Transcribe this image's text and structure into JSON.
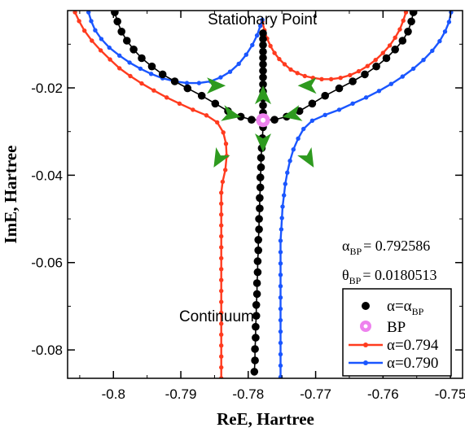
{
  "chart_data": {
    "type": "scatter",
    "title": "",
    "xlabel": "ReE, Hartree",
    "ylabel": "ImE, Hartree",
    "xlim": [
      -0.8068,
      -0.7482
    ],
    "ylim": [
      -0.0865,
      -0.0023
    ],
    "xticks": [
      -0.8,
      -0.79,
      -0.78,
      -0.77,
      -0.76,
      -0.75
    ],
    "xtick_labels": [
      "-0.8",
      "-0.79",
      "-0.78",
      "-0.77",
      "-0.76",
      "-0.75"
    ],
    "yticks": [
      -0.02,
      -0.04,
      -0.06,
      -0.08
    ],
    "ytick_labels": [
      "-0.02",
      "-0.04",
      "-0.06",
      "-0.08"
    ],
    "grid": false,
    "legend_position": "bottom-right",
    "annotations": [
      {
        "text": "Stationary Point",
        "x": -0.7779,
        "y": -0.0055
      },
      {
        "text": "Continuum",
        "x": -0.7847,
        "y": -0.0735
      }
    ],
    "parameters": [
      {
        "symbol": "α",
        "subscript": "BP",
        "value": "= 0.792586"
      },
      {
        "symbol": "θ",
        "subscript": "BP",
        "value": "= 0.0180513"
      }
    ],
    "branch_point": {
      "x": -0.7778,
      "y": -0.0274
    },
    "arrows": [
      {
        "x": -0.7848,
        "y": -0.0195,
        "angle": 0
      },
      {
        "x": -0.7778,
        "y": -0.0217,
        "angle": -90
      },
      {
        "x": -0.7712,
        "y": -0.0195,
        "angle": 180
      },
      {
        "x": -0.7825,
        "y": -0.0262,
        "angle": 12
      },
      {
        "x": -0.7735,
        "y": -0.0262,
        "angle": 168
      },
      {
        "x": -0.7778,
        "y": -0.0325,
        "angle": 90
      },
      {
        "x": -0.7844,
        "y": -0.0363,
        "angle": 120
      },
      {
        "x": -0.771,
        "y": -0.0363,
        "angle": 60
      }
    ],
    "series": [
      {
        "name": "α=α_BP",
        "label_main": "α=α",
        "label_sub": "BP",
        "color": "#000000",
        "marker_r": 4.8,
        "line_width": 1.6,
        "curves": [
          [
            [
              -0.7998,
              -0.0027
            ],
            [
              -0.7994,
              -0.0048
            ],
            [
              -0.7988,
              -0.0071
            ],
            [
              -0.798,
              -0.0092
            ],
            [
              -0.797,
              -0.0112
            ],
            [
              -0.7958,
              -0.0132
            ],
            [
              -0.7943,
              -0.0151
            ],
            [
              -0.7927,
              -0.0169
            ],
            [
              -0.7909,
              -0.0185
            ],
            [
              -0.789,
              -0.0201
            ],
            [
              -0.7869,
              -0.0218
            ],
            [
              -0.7849,
              -0.0236
            ],
            [
              -0.783,
              -0.0253
            ],
            [
              -0.7811,
              -0.0266
            ],
            [
              -0.7795,
              -0.0273
            ],
            [
              -0.7778,
              -0.0274
            ],
            [
              -0.7761,
              -0.0273
            ],
            [
              -0.7743,
              -0.0266
            ],
            [
              -0.7724,
              -0.0253
            ],
            [
              -0.7705,
              -0.0236
            ],
            [
              -0.7686,
              -0.0218
            ],
            [
              -0.7665,
              -0.0201
            ],
            [
              -0.7645,
              -0.0185
            ],
            [
              -0.7627,
              -0.0169
            ],
            [
              -0.761,
              -0.0151
            ],
            [
              -0.7595,
              -0.0132
            ],
            [
              -0.7582,
              -0.0112
            ],
            [
              -0.7571,
              -0.0092
            ],
            [
              -0.7563,
              -0.0071
            ],
            [
              -0.7558,
              -0.0048
            ],
            [
              -0.7555,
              -0.0027
            ]
          ],
          [
            [
              -0.7778,
              -0.0075
            ],
            [
              -0.7778,
              -0.0088
            ],
            [
              -0.7778,
              -0.0102
            ],
            [
              -0.7778,
              -0.0117
            ],
            [
              -0.7778,
              -0.0131
            ],
            [
              -0.7778,
              -0.0146
            ],
            [
              -0.7778,
              -0.0161
            ],
            [
              -0.7778,
              -0.0176
            ],
            [
              -0.7778,
              -0.0192
            ],
            [
              -0.7778,
              -0.0208
            ],
            [
              -0.7778,
              -0.0224
            ],
            [
              -0.7778,
              -0.024
            ],
            [
              -0.7778,
              -0.0257
            ]
          ],
          [
            [
              -0.7778,
              -0.029
            ],
            [
              -0.7779,
              -0.0315
            ],
            [
              -0.778,
              -0.0338
            ],
            [
              -0.7781,
              -0.036
            ],
            [
              -0.7781,
              -0.0382
            ],
            [
              -0.7782,
              -0.0405
            ],
            [
              -0.7782,
              -0.0428
            ],
            [
              -0.7783,
              -0.0452
            ],
            [
              -0.7783,
              -0.0476
            ],
            [
              -0.7784,
              -0.05
            ],
            [
              -0.7784,
              -0.0524
            ],
            [
              -0.7785,
              -0.0548
            ],
            [
              -0.7785,
              -0.0572
            ],
            [
              -0.7786,
              -0.0597
            ],
            [
              -0.7786,
              -0.0622
            ],
            [
              -0.7787,
              -0.0647
            ],
            [
              -0.7787,
              -0.0672
            ],
            [
              -0.7788,
              -0.0697
            ],
            [
              -0.7788,
              -0.0722
            ],
            [
              -0.7789,
              -0.0747
            ],
            [
              -0.7789,
              -0.0772
            ],
            [
              -0.779,
              -0.0798
            ],
            [
              -0.779,
              -0.0824
            ],
            [
              -0.7791,
              -0.085
            ]
          ]
        ]
      },
      {
        "name": "BP",
        "label_main": "BP",
        "color": "#ee82ee",
        "points": [
          [
            -0.7778,
            -0.0274
          ]
        ]
      },
      {
        "name": "α=0.794",
        "label_main": "α=0.794",
        "color": "#ff3b1f",
        "marker_r": 2.7,
        "line_width": 2.4,
        "curves": [
          [
            [
              -0.8057,
              -0.0027
            ],
            [
              -0.8051,
              -0.0047
            ],
            [
              -0.8043,
              -0.0069
            ],
            [
              -0.8032,
              -0.0092
            ],
            [
              -0.8019,
              -0.0114
            ],
            [
              -0.8005,
              -0.0135
            ],
            [
              -0.7991,
              -0.0155
            ],
            [
              -0.7975,
              -0.0173
            ],
            [
              -0.7958,
              -0.019
            ],
            [
              -0.794,
              -0.0206
            ],
            [
              -0.7921,
              -0.0222
            ],
            [
              -0.7902,
              -0.0236
            ],
            [
              -0.7882,
              -0.025
            ],
            [
              -0.7862,
              -0.0263
            ],
            [
              -0.7846,
              -0.0279
            ],
            [
              -0.7837,
              -0.0302
            ],
            [
              -0.7833,
              -0.0328
            ],
            [
              -0.7832,
              -0.0356
            ],
            [
              -0.7834,
              -0.0388
            ],
            [
              -0.7838,
              -0.0415
            ],
            [
              -0.784,
              -0.044
            ],
            [
              -0.784,
              -0.0465
            ],
            [
              -0.784,
              -0.049
            ],
            [
              -0.784,
              -0.0515
            ],
            [
              -0.784,
              -0.054
            ],
            [
              -0.784,
              -0.0565
            ],
            [
              -0.784,
              -0.059
            ],
            [
              -0.784,
              -0.0615
            ],
            [
              -0.784,
              -0.064
            ],
            [
              -0.784,
              -0.0665
            ],
            [
              -0.784,
              -0.069
            ],
            [
              -0.784,
              -0.0715
            ],
            [
              -0.784,
              -0.074
            ],
            [
              -0.784,
              -0.0765
            ],
            [
              -0.784,
              -0.079
            ],
            [
              -0.784,
              -0.0815
            ],
            [
              -0.784,
              -0.084
            ],
            [
              -0.784,
              -0.0865
            ]
          ],
          [
            [
              -0.7779,
              -0.0048
            ],
            [
              -0.7776,
              -0.0068
            ],
            [
              -0.7772,
              -0.0087
            ],
            [
              -0.7767,
              -0.0104
            ],
            [
              -0.7761,
              -0.012
            ],
            [
              -0.7754,
              -0.0134
            ],
            [
              -0.7746,
              -0.0146
            ],
            [
              -0.7737,
              -0.0158
            ],
            [
              -0.7727,
              -0.0166
            ],
            [
              -0.7716,
              -0.0173
            ],
            [
              -0.7704,
              -0.0177
            ],
            [
              -0.7691,
              -0.018
            ],
            [
              -0.7677,
              -0.018
            ],
            [
              -0.7663,
              -0.0177
            ],
            [
              -0.7649,
              -0.0171
            ],
            [
              -0.7636,
              -0.0162
            ],
            [
              -0.7623,
              -0.015
            ],
            [
              -0.7611,
              -0.0136
            ],
            [
              -0.76,
              -0.012
            ],
            [
              -0.759,
              -0.0103
            ],
            [
              -0.7582,
              -0.0085
            ],
            [
              -0.7575,
              -0.0066
            ],
            [
              -0.757,
              -0.0046
            ],
            [
              -0.7566,
              -0.0027
            ]
          ]
        ]
      },
      {
        "name": "α=0.790",
        "label_main": "α=0.790",
        "color": "#1a56ff",
        "marker_r": 2.7,
        "line_width": 2.4,
        "curves": [
          [
            [
              -0.8037,
              -0.0027
            ],
            [
              -0.8033,
              -0.0047
            ],
            [
              -0.8027,
              -0.0068
            ],
            [
              -0.8018,
              -0.0088
            ],
            [
              -0.8006,
              -0.0108
            ],
            [
              -0.7991,
              -0.0126
            ],
            [
              -0.7976,
              -0.0142
            ],
            [
              -0.796,
              -0.0156
            ],
            [
              -0.7944,
              -0.0168
            ],
            [
              -0.7927,
              -0.0178
            ],
            [
              -0.7909,
              -0.0185
            ],
            [
              -0.7891,
              -0.0189
            ],
            [
              -0.7873,
              -0.0189
            ],
            [
              -0.7856,
              -0.0185
            ],
            [
              -0.7841,
              -0.0176
            ],
            [
              -0.7827,
              -0.0163
            ],
            [
              -0.7814,
              -0.0145
            ],
            [
              -0.7803,
              -0.0124
            ],
            [
              -0.7794,
              -0.0102
            ],
            [
              -0.7787,
              -0.008
            ],
            [
              -0.7782,
              -0.0058
            ],
            [
              -0.7779,
              -0.0044
            ]
          ],
          [
            [
              -0.7499,
              -0.0027
            ],
            [
              -0.7502,
              -0.0049
            ],
            [
              -0.7508,
              -0.0071
            ],
            [
              -0.7516,
              -0.0093
            ],
            [
              -0.7527,
              -0.0115
            ],
            [
              -0.754,
              -0.0136
            ],
            [
              -0.7555,
              -0.0156
            ],
            [
              -0.7571,
              -0.0174
            ],
            [
              -0.7588,
              -0.0191
            ],
            [
              -0.7606,
              -0.0207
            ],
            [
              -0.7625,
              -0.0222
            ],
            [
              -0.7645,
              -0.0236
            ],
            [
              -0.7665,
              -0.025
            ],
            [
              -0.7686,
              -0.0262
            ],
            [
              -0.7705,
              -0.0275
            ],
            [
              -0.7718,
              -0.0294
            ],
            [
              -0.7726,
              -0.0316
            ],
            [
              -0.7733,
              -0.0341
            ],
            [
              -0.7738,
              -0.0367
            ],
            [
              -0.7742,
              -0.0394
            ],
            [
              -0.7745,
              -0.042
            ],
            [
              -0.7747,
              -0.0446
            ],
            [
              -0.7749,
              -0.0472
            ],
            [
              -0.775,
              -0.0498
            ],
            [
              -0.7751,
              -0.0524
            ],
            [
              -0.7752,
              -0.055
            ],
            [
              -0.7752,
              -0.0576
            ],
            [
              -0.7752,
              -0.0602
            ],
            [
              -0.7752,
              -0.0628
            ],
            [
              -0.7752,
              -0.0654
            ],
            [
              -0.7752,
              -0.068
            ],
            [
              -0.7752,
              -0.0706
            ],
            [
              -0.7752,
              -0.0732
            ],
            [
              -0.7752,
              -0.0758
            ],
            [
              -0.7752,
              -0.0784
            ],
            [
              -0.7752,
              -0.081
            ],
            [
              -0.7752,
              -0.0836
            ],
            [
              -0.7752,
              -0.0862
            ]
          ]
        ]
      }
    ]
  }
}
